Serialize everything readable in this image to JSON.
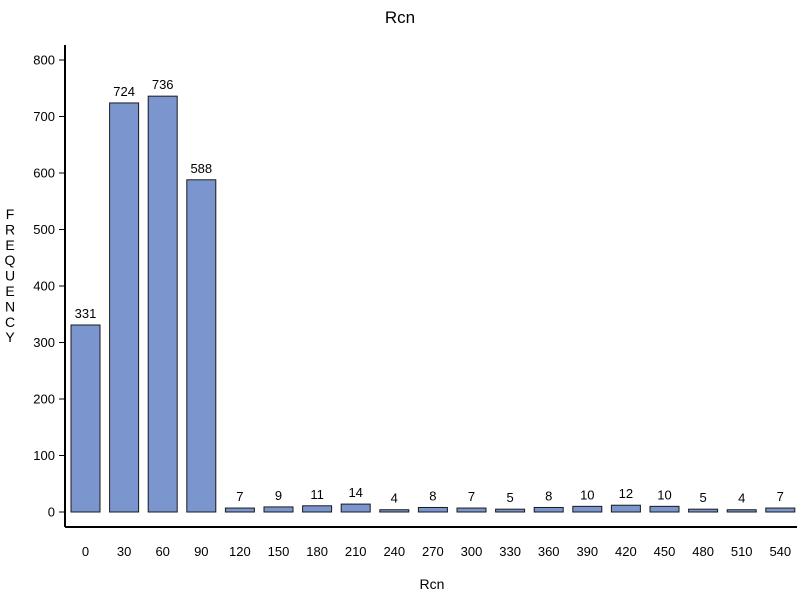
{
  "chart_data": {
    "type": "bar",
    "title": "Rcn",
    "xlabel": "Rcn",
    "ylabel": "FREQUENCY",
    "categories": [
      "0",
      "30",
      "60",
      "90",
      "120",
      "150",
      "180",
      "210",
      "240",
      "270",
      "300",
      "330",
      "360",
      "390",
      "420",
      "450",
      "480",
      "510",
      "540"
    ],
    "values": [
      331,
      724,
      736,
      588,
      7,
      9,
      11,
      14,
      4,
      8,
      7,
      5,
      8,
      10,
      12,
      10,
      5,
      4,
      7
    ],
    "data_labels": [
      "331",
      "724",
      "736",
      "588",
      "7",
      "9",
      "11",
      "14",
      "4",
      "8",
      "7",
      "5",
      "8",
      "10",
      "12",
      "10",
      "5",
      "4",
      "7"
    ],
    "ylim": [
      0,
      825
    ],
    "yticks": [
      "0",
      "100",
      "200",
      "300",
      "400",
      "500",
      "600",
      "700",
      "800"
    ],
    "bar_color": "#7b96cf",
    "bar_edge_color": "#1a1a1a",
    "grid": false,
    "legend": "none"
  }
}
